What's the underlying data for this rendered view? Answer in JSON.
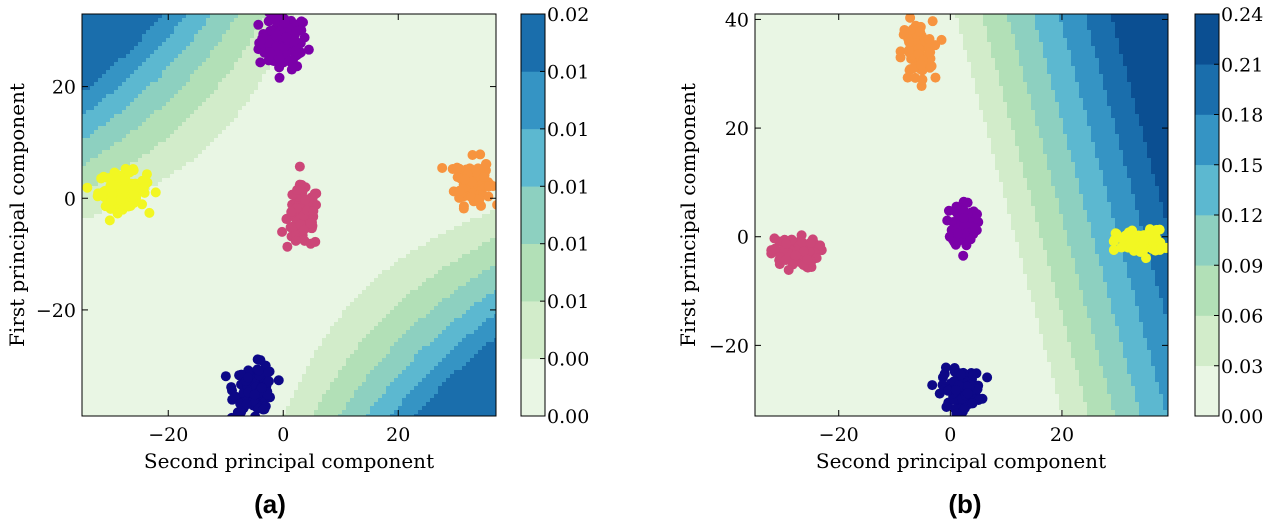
{
  "chart_data": [
    {
      "type": "contour-scatter",
      "panel_label": "(a)",
      "xlabel": "Second principal component",
      "ylabel": "First principal component",
      "xlim": [
        -35,
        37
      ],
      "ylim": [
        -39,
        33
      ],
      "xticks": [
        -20,
        0,
        20
      ],
      "yticks": [
        -20,
        0,
        20
      ],
      "xtick_labels": [
        "−20",
        "0",
        "20"
      ],
      "ytick_labels": [
        "−20",
        "0",
        "20"
      ],
      "colorbar": {
        "tick_labels": [
          "0.00",
          "0.00",
          "0.01",
          "0.01",
          "0.01",
          "0.01",
          "0.01",
          "0.02"
        ],
        "colors": [
          "#e9f6e4",
          "#d2ecca",
          "#b2e0b7",
          "#8dd0c0",
          "#5cb8d0",
          "#3594c4",
          "#1a6eac"
        ]
      },
      "contour_field": "saddle",
      "clusters": [
        {
          "color": "#7b00a8",
          "cx": 0,
          "cy": 28,
          "sx": 3,
          "sy": 3.5,
          "n": 110
        },
        {
          "color": "#f7943f",
          "cx": 33,
          "cy": 3,
          "sx": 2.2,
          "sy": 3,
          "n": 100
        },
        {
          "color": "#f2f722",
          "cx": -28,
          "cy": 1.5,
          "sx": 3,
          "sy": 2.3,
          "n": 110
        },
        {
          "color": "#cc4778",
          "cx": 3.5,
          "cy": -3.5,
          "sx": 2,
          "sy": 4,
          "n": 100
        },
        {
          "color": "#0d0887",
          "cx": -5,
          "cy": -34,
          "sx": 2.5,
          "sy": 3,
          "n": 110
        }
      ]
    },
    {
      "type": "contour-scatter",
      "panel_label": "(b)",
      "xlabel": "Second principal component",
      "ylabel": "First principal component",
      "xlim": [
        -35,
        39
      ],
      "ylim": [
        -33,
        41
      ],
      "xticks": [
        -20,
        0,
        20
      ],
      "yticks": [
        -20,
        0,
        20,
        40
      ],
      "xtick_labels": [
        "−20",
        "0",
        "20"
      ],
      "ytick_labels": [
        "−20",
        "0",
        "20",
        "40"
      ],
      "colorbar": {
        "tick_labels": [
          "0.00",
          "0.03",
          "0.06",
          "0.09",
          "0.12",
          "0.15",
          "0.18",
          "0.21",
          "0.24"
        ],
        "colors": [
          "#e9f6e4",
          "#d2ecca",
          "#b2e0b7",
          "#8dd0c0",
          "#5cb8d0",
          "#3594c4",
          "#1a6eac",
          "#0b4f92"
        ]
      },
      "contour_field": "linear",
      "clusters": [
        {
          "color": "#f7943f",
          "cx": -6,
          "cy": 34,
          "sx": 2,
          "sy": 4,
          "n": 100
        },
        {
          "color": "#7b00a8",
          "cx": 2.5,
          "cy": 2.5,
          "sx": 1.5,
          "sy": 3,
          "n": 100
        },
        {
          "color": "#cc4778",
          "cx": -28,
          "cy": -3,
          "sx": 3,
          "sy": 2,
          "n": 100
        },
        {
          "color": "#f2f722",
          "cx": 34,
          "cy": -1,
          "sx": 3,
          "sy": 1.6,
          "n": 100
        },
        {
          "color": "#0d0887",
          "cx": 2,
          "cy": -28,
          "sx": 2.5,
          "sy": 2.5,
          "n": 110
        }
      ]
    }
  ]
}
